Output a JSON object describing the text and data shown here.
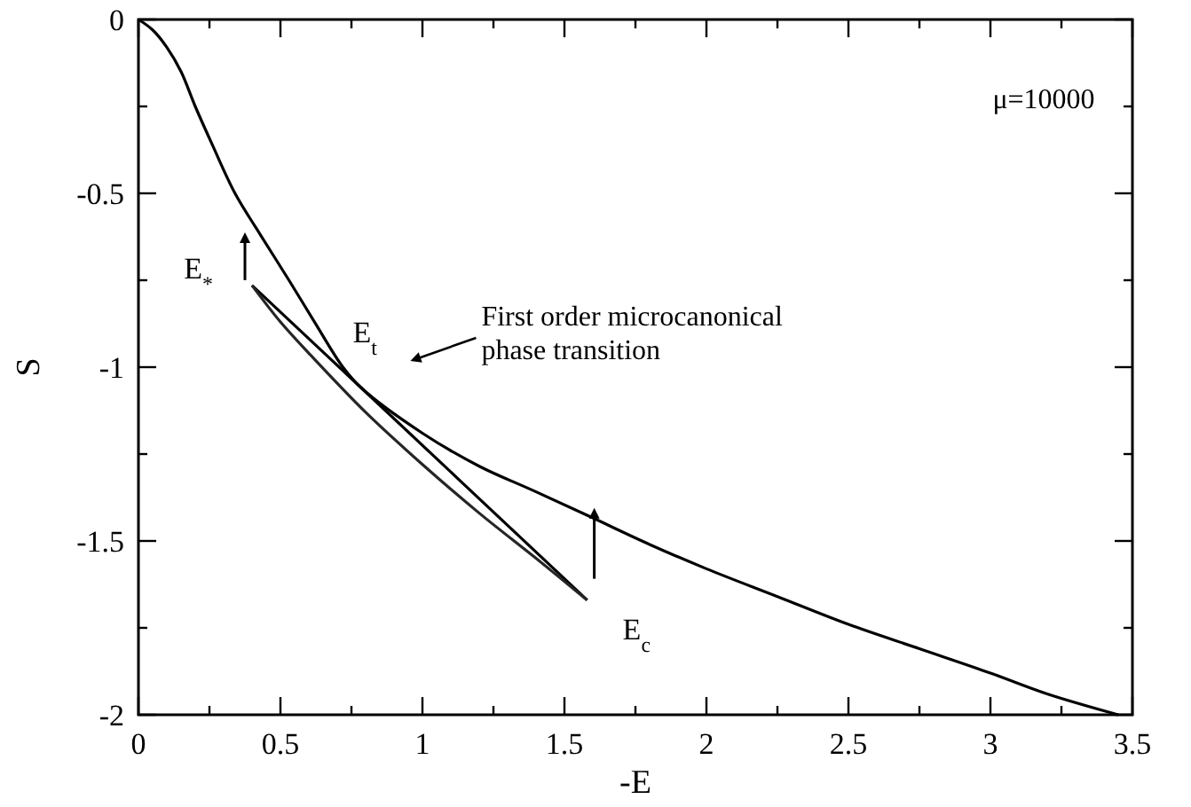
{
  "chart_data": {
    "type": "line",
    "xlabel": "-E",
    "ylabel": "S",
    "xlim": [
      0,
      3.5
    ],
    "ylim": [
      -2,
      0
    ],
    "xticks": [
      0,
      {
        "value": 0.25,
        "label": null
      },
      0.5,
      {
        "value": 0.75,
        "label": null
      },
      1,
      {
        "value": 1.25,
        "label": null
      },
      1.5,
      {
        "value": 1.75,
        "label": null
      },
      2,
      {
        "value": 2.25,
        "label": null
      },
      2.5,
      {
        "value": 2.75,
        "label": null
      },
      3,
      {
        "value": 3.25,
        "label": null
      },
      3.5
    ],
    "yticks": [
      -2,
      {
        "value": -1.75,
        "label": null
      },
      -1.5,
      {
        "value": -1.25,
        "label": null
      },
      -1,
      {
        "value": -0.75,
        "label": null
      },
      -0.5,
      {
        "value": -0.25,
        "label": null
      },
      0
    ],
    "grid": false,
    "line_style": "solid",
    "series": [
      {
        "color": "#000000",
        "x": [
          0,
          0.05,
          0.1,
          0.15,
          0.2,
          0.26,
          0.34,
          0.43,
          0.53,
          0.62,
          0.72,
          0.785,
          1.0,
          1.2,
          1.39,
          1.59,
          1.8,
          2.0,
          2.25,
          2.5,
          2.75,
          3.0,
          3.2,
          3.45
        ],
        "values": [
          0,
          -0.03,
          -0.08,
          -0.15,
          -0.25,
          -0.36,
          -0.5,
          -0.62,
          -0.75,
          -0.87,
          -1.0,
          -1.06,
          -1.19,
          -1.285,
          -1.355,
          -1.43,
          -1.51,
          -1.58,
          -1.66,
          -1.74,
          -1.81,
          -1.88,
          -1.94,
          -2.0
        ]
      },
      {
        "color": "#000000",
        "x": [
          0.4,
          0.785,
          1.58
        ],
        "values": [
          -0.765,
          -1.06,
          -1.67
        ]
      },
      {
        "color": "#262626",
        "x": [
          0.4,
          0.5,
          0.6,
          0.8,
          1.0,
          1.2,
          1.4,
          1.58
        ],
        "values": [
          -0.765,
          -0.87,
          -0.96,
          -1.13,
          -1.28,
          -1.42,
          -1.55,
          -1.67
        ]
      }
    ],
    "annotations": [
      {
        "text": "E$_{*}$",
        "x": 0.4,
        "y": -0.765
      },
      {
        "text": "E$_{t}$",
        "x": 0.785,
        "y": -1.06
      },
      "First order microcanonical phase transition",
      {
        "text": "E$_{c}$",
        "x": 1.58,
        "y": -1.67
      },
      "μ=10000"
    ]
  }
}
